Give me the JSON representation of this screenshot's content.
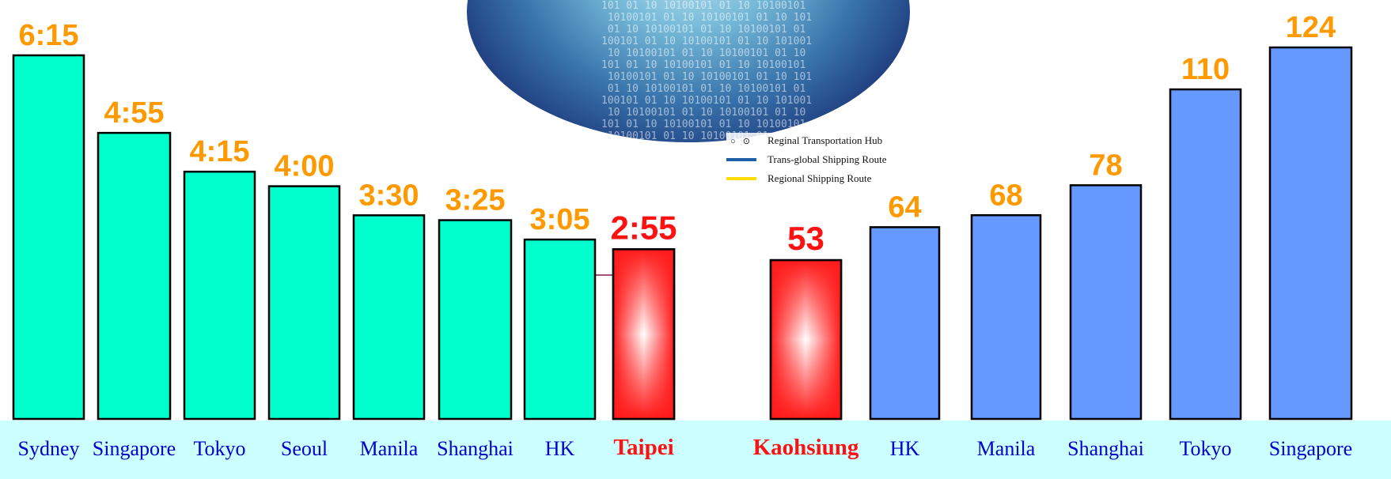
{
  "legend": {
    "items": [
      {
        "label": "Reginal Transportation Hub",
        "icon": "hub-circles-icon"
      },
      {
        "label": "Trans-global Shipping Route",
        "color": "#1f5fa8"
      },
      {
        "label": "Regional Shipping Route",
        "color": "#ffdd00"
      }
    ]
  },
  "colors": {
    "flight_bar": "#00ffcc",
    "port_bar": "#6699ff",
    "highlight": "#ff2222",
    "value_label": "#ff9900",
    "highlight_label": "#ff1111",
    "city_label": "#0000cc",
    "label_strip": "#ccffff"
  },
  "chart_data": [
    {
      "type": "bar",
      "title": "",
      "xlabel": "",
      "ylabel": "",
      "categories": [
        "Sydney",
        "Singapore",
        "Tokyo",
        "Seoul",
        "Manila",
        "Shanghai",
        "HK",
        "Taipei"
      ],
      "values": [
        375,
        295,
        255,
        240,
        210,
        205,
        185,
        175
      ],
      "value_labels": [
        "6:15",
        "4:55",
        "4:15",
        "4:00",
        "3:30",
        "3:25",
        "3:05",
        "2:55"
      ],
      "highlight": "Taipei",
      "ylim": [
        0,
        375
      ]
    },
    {
      "type": "bar",
      "title": "",
      "xlabel": "",
      "ylabel": "",
      "categories": [
        "Kaohsiung",
        "HK",
        "Manila",
        "Shanghai",
        "Tokyo",
        "Singapore"
      ],
      "values": [
        53,
        64,
        68,
        78,
        110,
        124
      ],
      "value_labels": [
        "53",
        "64",
        "68",
        "78",
        "110",
        "124"
      ],
      "highlight": "Kaohsiung",
      "ylim": [
        0,
        124
      ]
    }
  ]
}
